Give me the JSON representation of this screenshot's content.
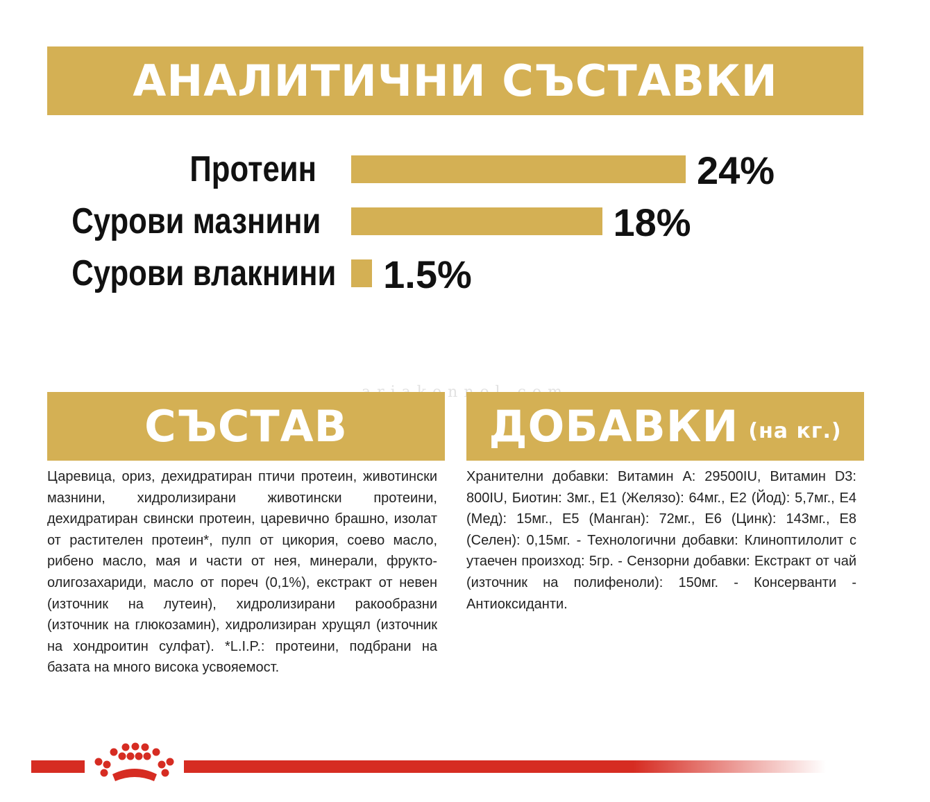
{
  "analytic": {
    "title": "АНАЛИТИЧНИ СЪСТАВКИ",
    "items": [
      {
        "label": "Протеин",
        "value_text": "24%",
        "value": 24
      },
      {
        "label": "Сурови мазнини",
        "value_text": "18%",
        "value": 18
      },
      {
        "label": "Сурови влакнини",
        "value_text": "1.5%",
        "value": 1.5
      }
    ]
  },
  "composition": {
    "title": "СЪСТАВ",
    "text": "Царевица, ориз, дехидратиран птичи протеин, животински мазнини, хидролизирани животински протеини, дехидратиран свински протеин, царевично брашно, изолат от растителен протеин*, пулп от цикория, соево масло, рибено масло, мая и части от нея, минерали, фрукто-олигозахариди, масло от пореч (0,1%), екстракт от невен (източник на лутеин), хидролизирани ракообразни (източник на глюкозамин), хидролизиран хрущял (източник на хондроитин сулфат). *L.I.P.: протеини, подбрани на базата на много висока усвояемост."
  },
  "additives": {
    "title": "ДОБАВКИ",
    "subtitle": "(на кг.)",
    "text": "Хранителни добавки: Витамин А: 29500IU, Витамин D3: 800IU, Биотин: 3мг., E1 (Желязо): 64мг., E2 (Йод): 5,7мг., E4 (Мед): 15мг., E5 (Манган): 72мг., E6 (Цинк): 143мг., E8 (Селен): 0,15мг. - Технологични добавки: Клиноптилолит с утаечен произход: 5гр. - Сензорни добавки: Екстракт от чай (източник на полифеноли): 150мг. - Консерванти - Антиоксиданти."
  },
  "watermark": "ariakennel.com",
  "colors": {
    "gold": "#d4b054",
    "red": "#d62c22"
  },
  "footer": {
    "logo_icon": "crown-icon"
  }
}
